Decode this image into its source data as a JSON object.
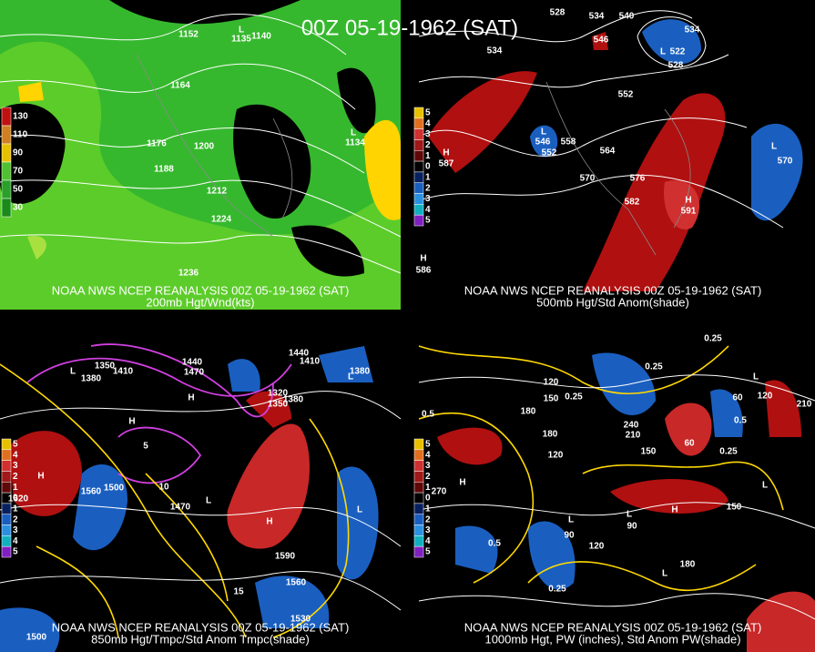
{
  "title": "00Z 05-19-1962 (SAT)",
  "panels": [
    {
      "caption_line1": "NOAA NWS NCEP REANALYSIS 00Z 05-19-1962 (SAT)",
      "caption_line2": "200mb Hgt/Wnd(kts)",
      "colorbar": [
        "130",
        "110",
        "90",
        "70",
        "50",
        "30"
      ],
      "labels": [
        "1152",
        "1140",
        "L",
        "1135",
        "1164",
        "1176",
        "1200",
        "1188",
        "1212",
        "1224",
        "1236",
        "L",
        "1134"
      ]
    },
    {
      "caption_line1": "NOAA NWS NCEP REANALYSIS 00Z 05-19-1962 (SAT)",
      "caption_line2": "500mb Hgt/Std Anom(shade)",
      "colorbar": [
        "5",
        "4",
        "3",
        "2",
        "1",
        "0",
        "1",
        "2",
        "3",
        "4",
        "5"
      ],
      "labels": [
        "528",
        "534",
        "540",
        "546",
        "534",
        "534",
        "L",
        "522",
        "528",
        "552",
        "558",
        "564",
        "L",
        "546",
        "552",
        "570",
        "576",
        "582",
        "H",
        "587",
        "H",
        "591",
        "L",
        "570",
        "H",
        "586"
      ]
    },
    {
      "caption_line1": "NOAA NWS NCEP REANALYSIS 00Z 05-19-1962 (SAT)",
      "caption_line2": "850mb Hgt/Tmpc/Std Anom Tmpc(shade)",
      "colorbar": [
        "5",
        "4",
        "3",
        "2",
        "1",
        "0",
        "1",
        "2",
        "3",
        "4",
        "5"
      ],
      "labels": [
        "L",
        "1350",
        "1380",
        "1410",
        "1440",
        "1470",
        "1440",
        "1410",
        "L",
        "1380",
        "H",
        "H",
        "1320",
        "1380",
        "1350",
        "H",
        "1620",
        "1560",
        "1500",
        "1470",
        "L",
        "H",
        "1590",
        "1560",
        "1530",
        "L",
        "1500",
        "5",
        "10",
        "15"
      ]
    },
    {
      "caption_line1": "NOAA NWS NCEP REANALYSIS 00Z 05-19-1962 (SAT)",
      "caption_line2": "1000mb Hgt, PW (inches), Std Anom PW(shade)",
      "colorbar": [
        "5",
        "4",
        "3",
        "2",
        "1",
        "0",
        "1",
        "2",
        "3",
        "4",
        "5"
      ],
      "labels": [
        "0.25",
        "0.25",
        "0.25",
        "0.5",
        "180",
        "120",
        "150",
        "240",
        "210",
        "150",
        "120",
        "180",
        "H",
        "270",
        "L",
        "90",
        "L",
        "90",
        "H",
        "120",
        "0.5",
        "0.25",
        "180",
        "L",
        "150",
        "L",
        "120",
        "60",
        "L",
        "60",
        "0.25",
        "0.5",
        "210"
      ]
    }
  ]
}
